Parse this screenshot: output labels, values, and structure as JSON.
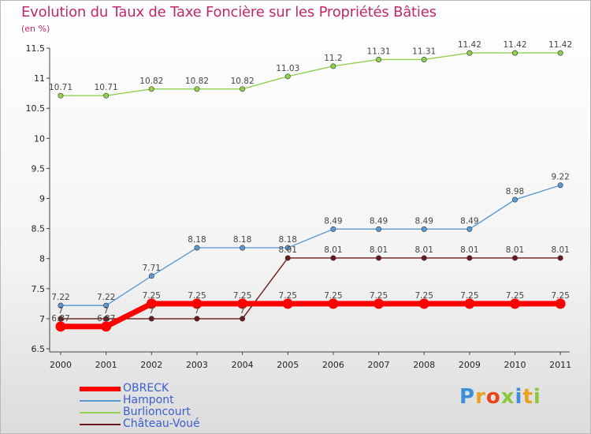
{
  "chart_data": {
    "type": "line",
    "title": "Evolution du Taux de Taxe Foncière sur les Propriétés Bâties",
    "ylabel": "(en %)",
    "xlabel": "",
    "x": [
      "2000",
      "2001",
      "2002",
      "2003",
      "2004",
      "2005",
      "2006",
      "2007",
      "2008",
      "2009",
      "2010",
      "2011"
    ],
    "ylim": [
      6.5,
      11.5
    ],
    "yticks": [
      "6.5",
      "7",
      "7.5",
      "8",
      "8.5",
      "9",
      "9.5",
      "10",
      "10.5",
      "11",
      "11.5"
    ],
    "series": [
      {
        "name": "OBRECK",
        "color": "#ff0000",
        "values": [
          6.87,
          6.87,
          7.25,
          7.25,
          7.25,
          7.25,
          7.25,
          7.25,
          7.25,
          7.25,
          7.25,
          7.25
        ],
        "labels": [
          "6.87",
          "6.87",
          "7.25",
          "7.25",
          "7.25",
          "7.25",
          "7.25",
          "7.25",
          "7.25",
          "7.25",
          "7.25",
          "7.25"
        ]
      },
      {
        "name": "Hampont",
        "color": "#5b9bd5",
        "values": [
          7.22,
          7.22,
          7.71,
          8.18,
          8.18,
          8.18,
          8.49,
          8.49,
          8.49,
          8.49,
          8.98,
          9.22
        ],
        "labels": [
          "7.22",
          "7.22",
          "7.71",
          "8.18",
          "8.18",
          "8.18",
          "8.49",
          "8.49",
          "8.49",
          "8.49",
          "8.98",
          "9.22"
        ]
      },
      {
        "name": "Burlioncourt",
        "color": "#8fd14f",
        "values": [
          10.71,
          10.71,
          10.82,
          10.82,
          10.82,
          11.03,
          11.2,
          11.31,
          11.31,
          11.42,
          11.42,
          11.42
        ],
        "labels": [
          "10.71",
          "10.71",
          "10.82",
          "10.82",
          "10.82",
          "11.03",
          "11.2",
          "11.31",
          "11.31",
          "11.42",
          "11.42",
          "11.42"
        ]
      },
      {
        "name": "Château-Voué",
        "color": "#6b1a1a",
        "values": [
          7,
          7,
          7,
          7,
          7,
          8.01,
          8.01,
          8.01,
          8.01,
          8.01,
          8.01,
          8.01
        ],
        "labels": [
          "7",
          "7",
          "7",
          "7",
          "7",
          "8.01",
          "8.01",
          "8.01",
          "8.01",
          "8.01",
          "8.01",
          "8.01"
        ]
      }
    ]
  },
  "legend": [
    {
      "name": "OBRECK",
      "color": "#ff0000",
      "thick": true
    },
    {
      "name": "Hampont",
      "color": "#5b9bd5",
      "thick": false
    },
    {
      "name": "Burlioncourt",
      "color": "#8fd14f",
      "thick": false
    },
    {
      "name": "Château-Voué",
      "color": "#6b1a1a",
      "thick": false
    }
  ],
  "logo": {
    "text": "Proxiti",
    "colors": [
      "#3a8fd6",
      "#e8a21c",
      "#e8431a",
      "#8cc63f",
      "#3a8fd6",
      "#e8a21c",
      "#8cc63f"
    ]
  }
}
